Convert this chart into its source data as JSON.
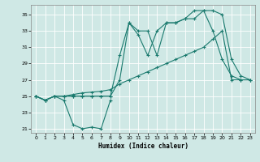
{
  "title": "",
  "xlabel": "Humidex (Indice chaleur)",
  "ylabel": "",
  "xlim": [
    -0.5,
    23.5
  ],
  "ylim": [
    20.5,
    36.2
  ],
  "yticks": [
    21,
    23,
    25,
    27,
    29,
    31,
    33,
    35
  ],
  "xticks": [
    0,
    1,
    2,
    3,
    4,
    5,
    6,
    7,
    8,
    9,
    10,
    11,
    12,
    13,
    14,
    15,
    16,
    17,
    18,
    19,
    20,
    21,
    22,
    23
  ],
  "background_color": "#cfe8e5",
  "grid_color": "#ffffff",
  "line_color": "#1a7a6e",
  "line1_x": [
    0,
    1,
    2,
    3,
    4,
    5,
    6,
    7,
    8
  ],
  "line1_y": [
    25,
    24.5,
    25,
    24.5,
    21.5,
    21,
    21.2,
    21,
    24.5
  ],
  "line2_x": [
    0,
    1,
    2,
    3,
    4,
    5,
    6,
    7,
    8,
    9,
    10,
    11,
    12,
    13,
    14,
    15,
    16,
    17,
    18,
    19,
    20,
    21,
    22,
    23
  ],
  "line2_y": [
    25,
    24.5,
    25,
    25,
    25,
    25,
    25,
    25,
    25,
    30,
    34,
    32.5,
    30,
    33,
    34,
    34,
    34.5,
    35.5,
    35.5,
    35.5,
    35,
    29.5,
    27.5,
    27
  ],
  "line3_x": [
    0,
    1,
    2,
    3,
    4,
    5,
    6,
    7,
    8,
    9,
    10,
    11,
    12,
    13,
    14,
    15,
    16,
    17,
    18,
    19,
    20,
    21,
    22,
    23
  ],
  "line3_y": [
    25,
    24.5,
    25,
    25,
    25,
    25,
    25,
    25,
    25,
    27,
    34,
    33,
    33,
    30,
    34,
    34,
    34.5,
    34.5,
    35.5,
    33,
    29.5,
    27.5,
    27,
    27
  ],
  "line4_x": [
    0,
    1,
    2,
    3,
    4,
    5,
    6,
    7,
    8,
    9,
    10,
    11,
    12,
    13,
    14,
    15,
    16,
    17,
    18,
    19,
    20,
    21,
    22,
    23
  ],
  "line4_y": [
    25,
    24.5,
    25,
    25,
    25.2,
    25.4,
    25.5,
    25.6,
    25.8,
    26.5,
    27,
    27.5,
    28,
    28.5,
    29,
    29.5,
    30,
    30.5,
    31,
    32,
    33,
    27,
    27,
    27
  ]
}
